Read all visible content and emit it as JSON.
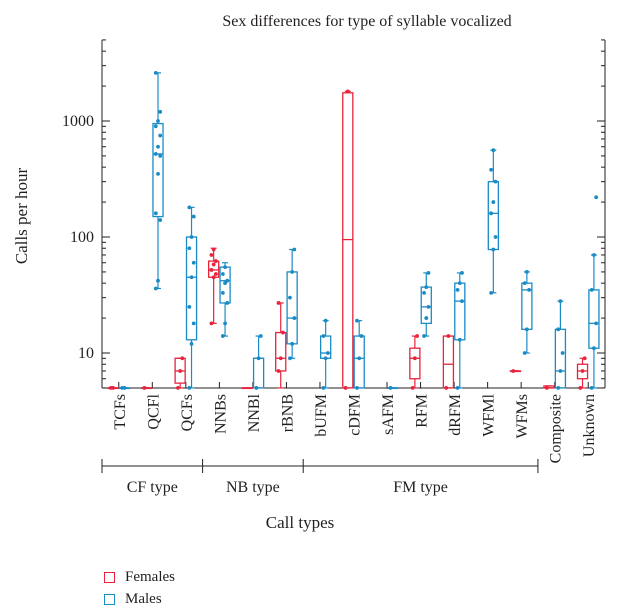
{
  "chart_data": {
    "type": "box",
    "title": "Sex differences for type of syllable vocalized",
    "xlabel": "Call types",
    "ylabel": "Calls per hour",
    "yscale": "log",
    "ylim": [
      5,
      5000
    ],
    "yticks": [
      10,
      100,
      1000
    ],
    "ytick_labels": [
      "10",
      "100",
      "1000"
    ],
    "categories": [
      "TCFs",
      "QCFl",
      "QCFs",
      "NNBs",
      "NNBl",
      "rBNB",
      "bUFM",
      "cDFM",
      "sAFM",
      "RFM",
      "dRFM",
      "WFMl",
      "WFMs",
      "Composite",
      "Unknown"
    ],
    "groups": [
      {
        "label": "CF type",
        "from": 0,
        "to": 2
      },
      {
        "label": "NB type",
        "from": 3,
        "to": 5
      },
      {
        "label": "FM type",
        "from": 6,
        "to": 12
      }
    ],
    "colors": {
      "Females": "#e8233c",
      "Males": "#1b8bc6"
    },
    "series": [
      {
        "name": "Females",
        "boxes": [
          {
            "q1": 5,
            "median": 5,
            "q3": 5,
            "min": 5,
            "max": 5,
            "points": [
              5,
              5
            ]
          },
          {
            "q1": 5,
            "median": 5,
            "q3": 5,
            "min": 5,
            "max": 5,
            "points": [
              5
            ]
          },
          {
            "q1": 5.5,
            "median": 7,
            "q3": 9,
            "min": 5,
            "max": 9,
            "points": [
              5,
              7,
              9
            ]
          },
          {
            "q1": 45,
            "median": 52,
            "q3": 62,
            "min": 18,
            "max": 80,
            "points": [
              18,
              45,
              48,
              52,
              58,
              62,
              70,
              78
            ]
          },
          {
            "q1": 5,
            "median": 5,
            "q3": 5,
            "min": 5,
            "max": 5,
            "points": []
          },
          {
            "q1": 7,
            "median": 9,
            "q3": 15,
            "min": 5,
            "max": 27,
            "points": [
              7,
              9,
              15,
              27
            ]
          },
          null,
          {
            "q1": 5,
            "median": 95,
            "q3": 1750,
            "min": 5,
            "max": 1800,
            "points": [
              5,
              1800
            ]
          },
          null,
          {
            "q1": 6,
            "median": 9,
            "q3": 11,
            "min": 5,
            "max": 14,
            "points": [
              5,
              9,
              14
            ]
          },
          {
            "q1": 5,
            "median": 8,
            "q3": 14,
            "min": 5,
            "max": 14,
            "points": [
              5,
              14
            ]
          },
          null,
          {
            "q1": 7,
            "median": 7,
            "q3": 7,
            "min": 7,
            "max": 7,
            "points": [
              7
            ]
          },
          {
            "q1": 5,
            "median": 5,
            "q3": 5.2,
            "min": 5,
            "max": 5.2,
            "points": [
              5
            ]
          },
          {
            "q1": 6,
            "median": 7,
            "q3": 8,
            "min": 5,
            "max": 9,
            "points": [
              5,
              7,
              9
            ]
          }
        ]
      },
      {
        "name": "Males",
        "boxes": [
          {
            "q1": 5,
            "median": 5,
            "q3": 5,
            "min": 5,
            "max": 5,
            "points": [
              5,
              5
            ]
          },
          {
            "q1": 150,
            "median": 520,
            "q3": 950,
            "min": 36,
            "max": 2600,
            "points": [
              36,
              42,
              140,
              160,
              350,
              500,
              520,
              600,
              750,
              900,
              1000,
              1200,
              2600
            ]
          },
          {
            "q1": 13,
            "median": 45,
            "q3": 100,
            "min": 5,
            "max": 180,
            "points": [
              5,
              12,
              18,
              25,
              45,
              60,
              80,
              100,
              150,
              180
            ]
          },
          {
            "q1": 27,
            "median": 42,
            "q3": 55,
            "min": 14,
            "max": 60,
            "points": [
              14,
              18,
              27,
              33,
              40,
              42,
              48,
              55
            ]
          },
          {
            "q1": 5,
            "median": 9,
            "q3": 9,
            "min": 5,
            "max": 14,
            "points": [
              5,
              9,
              14
            ]
          },
          {
            "q1": 12,
            "median": 20,
            "q3": 50,
            "min": 9,
            "max": 78,
            "points": [
              9,
              12,
              20,
              30,
              50,
              78
            ]
          },
          {
            "q1": 9,
            "median": 10,
            "q3": 14,
            "min": 5,
            "max": 19,
            "points": [
              5,
              9,
              10,
              14,
              19
            ]
          },
          {
            "q1": 5,
            "median": 9,
            "q3": 14,
            "min": 5,
            "max": 19,
            "points": [
              5,
              9,
              14,
              19
            ]
          },
          {
            "q1": 5,
            "median": 5,
            "q3": 5,
            "min": 5,
            "max": 5,
            "points": [
              5
            ]
          },
          {
            "q1": 18,
            "median": 25,
            "q3": 37,
            "min": 14,
            "max": 49,
            "points": [
              14,
              20,
              25,
              33,
              37,
              49
            ]
          },
          {
            "q1": 13,
            "median": 28,
            "q3": 40,
            "min": 5,
            "max": 49,
            "points": [
              5,
              13,
              28,
              35,
              40,
              49
            ]
          },
          {
            "q1": 78,
            "median": 160,
            "q3": 300,
            "min": 33,
            "max": 560,
            "points": [
              33,
              78,
              100,
              160,
              200,
              300,
              380,
              560
            ]
          },
          {
            "q1": 16,
            "median": 35,
            "q3": 40,
            "min": 10,
            "max": 50,
            "points": [
              10,
              16,
              35,
              40,
              50
            ]
          },
          {
            "q1": 5,
            "median": 7,
            "q3": 16,
            "min": 5,
            "max": 28,
            "points": [
              5,
              7,
              10,
              16,
              28
            ]
          },
          {
            "q1": 11,
            "median": 18,
            "q3": 35,
            "min": 5,
            "max": 70,
            "points": [
              5,
              11,
              18,
              35,
              70,
              220
            ]
          }
        ]
      }
    ]
  },
  "legend": {
    "females_label": "Females",
    "males_label": "Males"
  }
}
